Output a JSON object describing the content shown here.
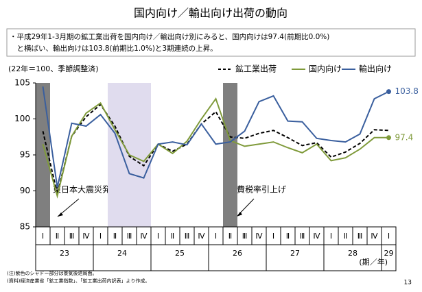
{
  "chart_data": {
    "type": "line",
    "title": "国内向け／輸出向け出荷の動向",
    "summary_lines": [
      "・平成29年1-3月期の鉱工業出荷を国内向け／輸出向け別にみると、国内向けは97.4(前期比0.0%)",
      "　と横ばい、輸出向けは103.8(前期比1.0%)と3期連続の上昇。"
    ],
    "y_label": "(22年＝100、季節調整済)",
    "x_label": "(期／年)",
    "categories": [
      "Ⅰ",
      "Ⅱ",
      "Ⅲ",
      "Ⅳ",
      "Ⅰ",
      "Ⅱ",
      "Ⅲ",
      "Ⅳ",
      "Ⅰ",
      "Ⅱ",
      "Ⅲ",
      "Ⅳ",
      "Ⅰ",
      "Ⅱ",
      "Ⅲ",
      "Ⅳ",
      "Ⅰ",
      "Ⅱ",
      "Ⅲ",
      "Ⅳ",
      "Ⅰ",
      "Ⅱ",
      "Ⅲ",
      "Ⅳ",
      "Ⅰ"
    ],
    "year_labels": [
      "23",
      "24",
      "25",
      "26",
      "27",
      "28",
      "29"
    ],
    "year_spans": [
      4,
      4,
      4,
      4,
      4,
      4,
      1
    ],
    "series": [
      {
        "name": "鉱工業出荷",
        "color": "#000000",
        "dash": true,
        "values": [
          98.3,
          89.6,
          97.6,
          100.3,
          102.0,
          99.0,
          94.8,
          93.5,
          96.5,
          95.5,
          96.5,
          99.3,
          101.0,
          97.5,
          97.3,
          98.0,
          98.4,
          97.4,
          96.3,
          96.7,
          94.7,
          95.4,
          96.6,
          98.5,
          98.4
        ]
      },
      {
        "name": "国内向け",
        "color": "#7f9a3a",
        "end_marker": true,
        "values": [
          96.5,
          89.3,
          97.6,
          100.8,
          102.2,
          98.5,
          95.0,
          94.1,
          96.5,
          95.2,
          96.9,
          100.0,
          102.8,
          97.0,
          96.2,
          96.5,
          96.8,
          96.0,
          95.3,
          96.5,
          94.2,
          94.6,
          95.8,
          97.4,
          97.4
        ]
      },
      {
        "name": "輸出向け",
        "color": "#3a5f9e",
        "end_marker": true,
        "values": [
          104.5,
          90.5,
          99.4,
          99.0,
          100.6,
          98.0,
          92.4,
          91.8,
          96.5,
          96.8,
          96.4,
          99.3,
          96.5,
          96.8,
          98.3,
          102.4,
          103.2,
          99.7,
          99.6,
          97.3,
          97.0,
          96.8,
          97.9,
          102.8,
          103.8
        ]
      }
    ],
    "shading": [
      {
        "from": 0,
        "to": 0,
        "color": "#7f7f7f"
      },
      {
        "from": 5,
        "to": 7,
        "color": "#e0dcee"
      },
      {
        "from": 13,
        "to": 13,
        "color": "#7f7f7f"
      }
    ],
    "annotations": [
      "東日本大震災発生",
      "消費税率引上げ"
    ],
    "ylim": [
      85,
      105
    ],
    "yticks": [
      85,
      90,
      95,
      100,
      105
    ],
    "grid": false,
    "notes": [
      "(注)紫色のシャドー部分は景気後退局面。",
      "(資料)経済産業省「鉱工業指数」、「鉱工業出荷内訳表」より作成。"
    ],
    "page_number": "13"
  }
}
